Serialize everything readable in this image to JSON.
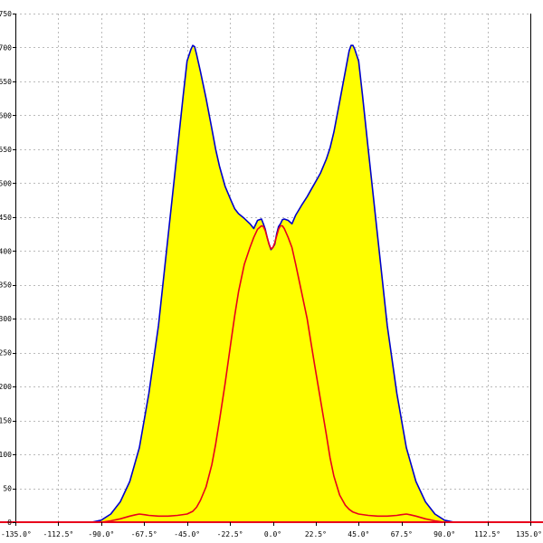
{
  "chart_data": {
    "type": "area",
    "title": "",
    "xlabel": "",
    "ylabel": "",
    "xlim": [
      -135,
      135
    ],
    "ylim": [
      0,
      750
    ],
    "grid": true,
    "x_ticks": [
      -135,
      -112.5,
      -90,
      -67.5,
      -45,
      -22.5,
      0,
      22.5,
      45,
      67.5,
      90,
      112.5,
      135
    ],
    "x_tick_labels": [
      "-135.0°",
      "-112.5°",
      "-90.0°",
      "-67.5°",
      "-45.0°",
      "-22.5°",
      "0.0°",
      "22.5°",
      "45.0°",
      "67.5°",
      "90.0°",
      "112.5°",
      "135.0°"
    ],
    "y_ticks": [
      0,
      50,
      100,
      150,
      200,
      250,
      300,
      350,
      400,
      450,
      500,
      550,
      600,
      650,
      700,
      750
    ],
    "y_tick_labels": [
      "0",
      "50",
      "100",
      "150",
      "200",
      "250",
      "300",
      "350",
      "400",
      "450",
      "500",
      "550",
      "600",
      "650",
      "700",
      "750"
    ],
    "colors": {
      "fill": "#ffff00",
      "outer_line": "#0000cc",
      "inner_line": "#e8001c",
      "baseline": "#e8001c",
      "grid": "#bbbbbb",
      "axis": "#000000"
    },
    "series": [
      {
        "style": "filled",
        "x": [
          -135,
          -95,
          -90,
          -85,
          -80,
          -75,
          -70,
          -65,
          -60,
          -55,
          -50,
          -47,
          -45,
          -43,
          -42,
          -41,
          -40,
          -38,
          -35,
          -32,
          -30,
          -28,
          -25,
          -22,
          -20,
          -18,
          -15,
          -12,
          -10,
          -8,
          -6,
          -5,
          -4,
          -3,
          -2,
          -1,
          0,
          1,
          2,
          3,
          4,
          5,
          6,
          8,
          10,
          12,
          15,
          18,
          20,
          22,
          25,
          28,
          30,
          32,
          35,
          38,
          40,
          41,
          42,
          43,
          45,
          47,
          50,
          55,
          60,
          65,
          70,
          75,
          80,
          85,
          90,
          95,
          135
        ],
        "y": [
          0,
          0,
          3,
          12,
          30,
          60,
          110,
          190,
          290,
          420,
          550,
          630,
          680,
          697,
          703,
          701,
          690,
          665,
          625,
          580,
          550,
          525,
          495,
          475,
          462,
          455,
          448,
          440,
          433,
          445,
          447,
          440,
          432,
          420,
          410,
          402,
          405,
          410,
          425,
          436,
          440,
          446,
          447,
          445,
          440,
          453,
          467,
          480,
          490,
          500,
          515,
          535,
          552,
          575,
          620,
          665,
          695,
          703,
          703,
          697,
          680,
          630,
          550,
          420,
          290,
          190,
          110,
          60,
          30,
          12,
          3,
          0,
          0
        ]
      },
      {
        "style": "line",
        "x": [
          -135,
          -90,
          -85,
          -80,
          -75,
          -72,
          -70,
          -67,
          -65,
          -60,
          -55,
          -50,
          -45,
          -42,
          -40,
          -38,
          -35,
          -32,
          -30,
          -28,
          -25,
          -22,
          -20,
          -18,
          -15,
          -12,
          -10,
          -8,
          -6,
          -5,
          -4,
          -3,
          -2,
          -1,
          0,
          1,
          2,
          3,
          4,
          5,
          6,
          8,
          10,
          12,
          15,
          18,
          20,
          22,
          25,
          28,
          30,
          32,
          35,
          38,
          40,
          42,
          45,
          50,
          55,
          60,
          65,
          67,
          70,
          72,
          75,
          80,
          85,
          90,
          135
        ],
        "y": [
          0,
          0,
          2,
          5,
          9,
          11,
          12,
          11,
          10,
          9,
          9,
          10,
          12,
          16,
          22,
          32,
          52,
          85,
          115,
          150,
          205,
          265,
          305,
          340,
          380,
          405,
          420,
          432,
          437,
          436,
          430,
          420,
          410,
          403,
          405,
          412,
          422,
          432,
          437,
          437,
          433,
          420,
          405,
          380,
          340,
          300,
          265,
          230,
          180,
          130,
          95,
          68,
          40,
          25,
          19,
          15,
          12,
          10,
          9,
          9,
          10,
          11,
          12,
          11,
          9,
          5,
          2,
          0,
          0
        ]
      }
    ]
  }
}
